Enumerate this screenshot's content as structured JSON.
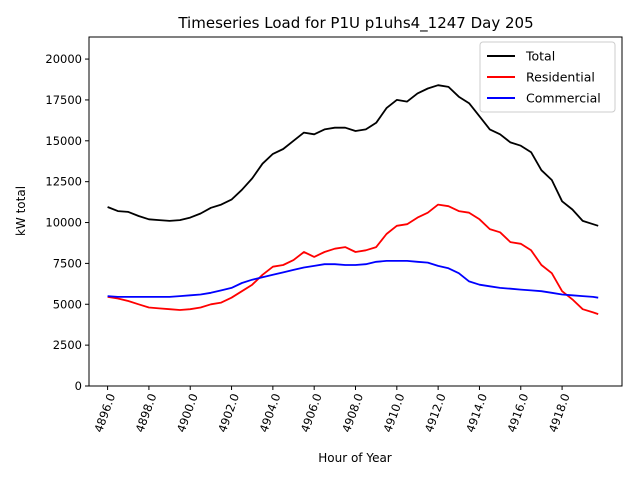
{
  "chart_data": {
    "type": "line",
    "title": "Timeseries Load for P1U p1uhs4_1247  Day 205",
    "xlabel": "Hour of Year",
    "ylabel": "kW total",
    "xlim": [
      4895.1,
      4920.9
    ],
    "ylim": [
      0,
      21350
    ],
    "xticks": [
      4896,
      4898,
      4900,
      4902,
      4904,
      4906,
      4908,
      4910,
      4912,
      4914,
      4916,
      4918
    ],
    "xtick_labels": [
      "4896.0",
      "4898.0",
      "4900.0",
      "4902.0",
      "4904.0",
      "4906.0",
      "4908.0",
      "4910.0",
      "4912.0",
      "4914.0",
      "4916.0",
      "4918.0"
    ],
    "yticks": [
      0,
      2500,
      5000,
      7500,
      10000,
      12500,
      15000,
      17500,
      20000
    ],
    "ytick_labels": [
      "0",
      "2500",
      "5000",
      "7500",
      "10000",
      "12500",
      "15000",
      "17500",
      "20000"
    ],
    "legend_position": "top-right",
    "grid": false,
    "x": [
      4896,
      4896.5,
      4897,
      4897.5,
      4898,
      4898.5,
      4899,
      4899.5,
      4900,
      4900.5,
      4901,
      4901.5,
      4902,
      4902.5,
      4903,
      4903.5,
      4904,
      4904.5,
      4905,
      4905.5,
      4906,
      4906.5,
      4907,
      4907.5,
      4908,
      4908.5,
      4909,
      4909.5,
      4910,
      4910.5,
      4911,
      4911.5,
      4912,
      4912.5,
      4913,
      4913.5,
      4914,
      4914.5,
      4915,
      4915.5,
      4916,
      4916.5,
      4917,
      4917.5,
      4918,
      4918.5,
      4919,
      4919.5,
      4919.75
    ],
    "series": [
      {
        "name": "Total",
        "color": "#000000",
        "values": [
          10950,
          10700,
          10650,
          10400,
          10200,
          10150,
          10100,
          10150,
          10300,
          10550,
          10900,
          11100,
          11400,
          12000,
          12700,
          13600,
          14200,
          14500,
          15000,
          15500,
          15400,
          15700,
          15800,
          15800,
          15600,
          15700,
          16100,
          17000,
          17500,
          17400,
          17900,
          18200,
          18400,
          18300,
          17700,
          17300,
          16500,
          15700,
          15400,
          14900,
          14700,
          14300,
          13200,
          12600,
          11300,
          10800,
          10100,
          9900,
          9800
        ]
      },
      {
        "name": "Residential",
        "color": "#ff0000",
        "values": [
          5450,
          5350,
          5200,
          5000,
          4800,
          4750,
          4700,
          4650,
          4700,
          4800,
          5000,
          5100,
          5400,
          5800,
          6200,
          6800,
          7300,
          7400,
          7700,
          8200,
          7900,
          8200,
          8400,
          8500,
          8200,
          8300,
          8500,
          9300,
          9800,
          9900,
          10300,
          10600,
          11100,
          11000,
          10700,
          10600,
          10200,
          9600,
          9400,
          8800,
          8700,
          8300,
          7400,
          6900,
          5800,
          5300,
          4700,
          4500,
          4400
        ]
      },
      {
        "name": "Commercial",
        "color": "#0000ff",
        "values": [
          5500,
          5450,
          5450,
          5450,
          5450,
          5450,
          5450,
          5500,
          5550,
          5600,
          5700,
          5850,
          6000,
          6300,
          6500,
          6650,
          6800,
          6950,
          7100,
          7250,
          7350,
          7450,
          7450,
          7400,
          7400,
          7450,
          7600,
          7650,
          7650,
          7650,
          7600,
          7550,
          7350,
          7200,
          6900,
          6400,
          6200,
          6100,
          6000,
          5950,
          5900,
          5850,
          5800,
          5700,
          5600,
          5550,
          5500,
          5450,
          5400
        ]
      }
    ]
  }
}
